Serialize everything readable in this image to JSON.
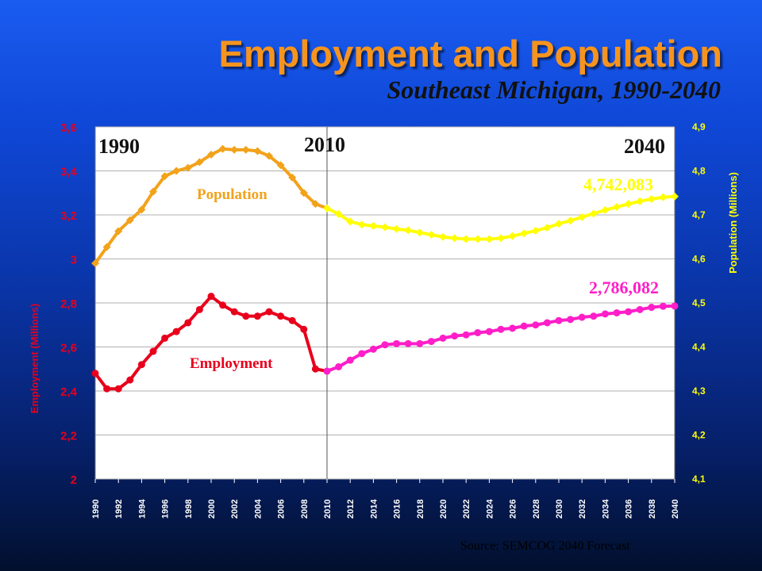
{
  "header": {
    "title": "Employment and Population",
    "subtitle": "Southeast Michigan, 1990-2040"
  },
  "source_note": "Source: SEMCOG 2040 Forecast",
  "colors": {
    "title": "#f7941d",
    "employment_series": "#ff1ec8",
    "employment_axis": "#e8001c",
    "population_series": "#ffff00",
    "population_label": "#f2a21b",
    "plot_background": "#ffffff"
  },
  "chart_data": {
    "type": "line",
    "x": [
      1990,
      1991,
      1992,
      1993,
      1994,
      1995,
      1996,
      1997,
      1998,
      1999,
      2000,
      2001,
      2002,
      2003,
      2004,
      2005,
      2006,
      2007,
      2008,
      2009,
      2010,
      2011,
      2012,
      2013,
      2014,
      2015,
      2016,
      2017,
      2018,
      2019,
      2020,
      2021,
      2022,
      2023,
      2024,
      2025,
      2026,
      2027,
      2028,
      2029,
      2030,
      2031,
      2032,
      2033,
      2034,
      2035,
      2036,
      2037,
      2038,
      2039,
      2040
    ],
    "x_ticks": [
      "1990",
      "1992",
      "1994",
      "1996",
      "1998",
      "2000",
      "2002",
      "2004",
      "2006",
      "2008",
      "2010",
      "2012",
      "2014",
      "2016",
      "2018",
      "2020",
      "2022",
      "2024",
      "2026",
      "2028",
      "2030",
      "2032",
      "2034",
      "2036",
      "2038",
      "2040"
    ],
    "y_left": {
      "label": "Employment (Millions)",
      "ticks": [
        "2",
        "2,2",
        "2,4",
        "2,6",
        "2,8",
        "3",
        "3,2",
        "3,4",
        "3,6"
      ],
      "range": [
        2,
        3.6
      ]
    },
    "y_right": {
      "label": "Population (Millions)",
      "ticks": [
        "4,1",
        "4,2",
        "4,3",
        "4,4",
        "4,5",
        "4,6",
        "4,7",
        "4,8",
        "4,9"
      ],
      "range": [
        4.1,
        4.9
      ]
    },
    "series": [
      {
        "name": "Population",
        "axis": "right",
        "color_historic": "#f2a21b",
        "color_forecast": "#ffff00",
        "marker": "diamond",
        "values": [
          4.59,
          4.627,
          4.663,
          4.688,
          4.712,
          4.753,
          4.788,
          4.8,
          4.807,
          4.82,
          4.837,
          4.85,
          4.848,
          4.848,
          4.845,
          4.834,
          4.813,
          4.785,
          4.75,
          4.725,
          4.715,
          4.702,
          4.685,
          4.678,
          4.675,
          4.672,
          4.668,
          4.665,
          4.66,
          4.655,
          4.65,
          4.647,
          4.645,
          4.645,
          4.645,
          4.647,
          4.652,
          4.658,
          4.664,
          4.671,
          4.68,
          4.687,
          4.695,
          4.703,
          4.711,
          4.718,
          4.725,
          4.731,
          4.736,
          4.74,
          4.742
        ]
      },
      {
        "name": "Employment",
        "axis": "left",
        "color_historic": "#e8001c",
        "color_forecast": "#ff1ec8",
        "marker": "circle",
        "values": [
          2.48,
          2.41,
          2.41,
          2.45,
          2.52,
          2.58,
          2.64,
          2.67,
          2.71,
          2.77,
          2.83,
          2.79,
          2.76,
          2.74,
          2.74,
          2.76,
          2.74,
          2.72,
          2.68,
          2.5,
          2.49,
          2.51,
          2.54,
          2.57,
          2.59,
          2.61,
          2.615,
          2.615,
          2.615,
          2.625,
          2.64,
          2.65,
          2.655,
          2.665,
          2.67,
          2.68,
          2.685,
          2.695,
          2.7,
          2.71,
          2.72,
          2.725,
          2.735,
          2.74,
          2.75,
          2.755,
          2.76,
          2.77,
          2.78,
          2.785,
          2.786
        ]
      }
    ],
    "split_year": 2010,
    "grid": "horizontal",
    "annotations": {
      "year_1990": "1990",
      "year_2010": "2010",
      "year_2040": "2040",
      "population_label": "Population",
      "employment_label": "Employment",
      "population_end_value": "4,742,083",
      "employment_end_value": "2,786,082"
    }
  }
}
